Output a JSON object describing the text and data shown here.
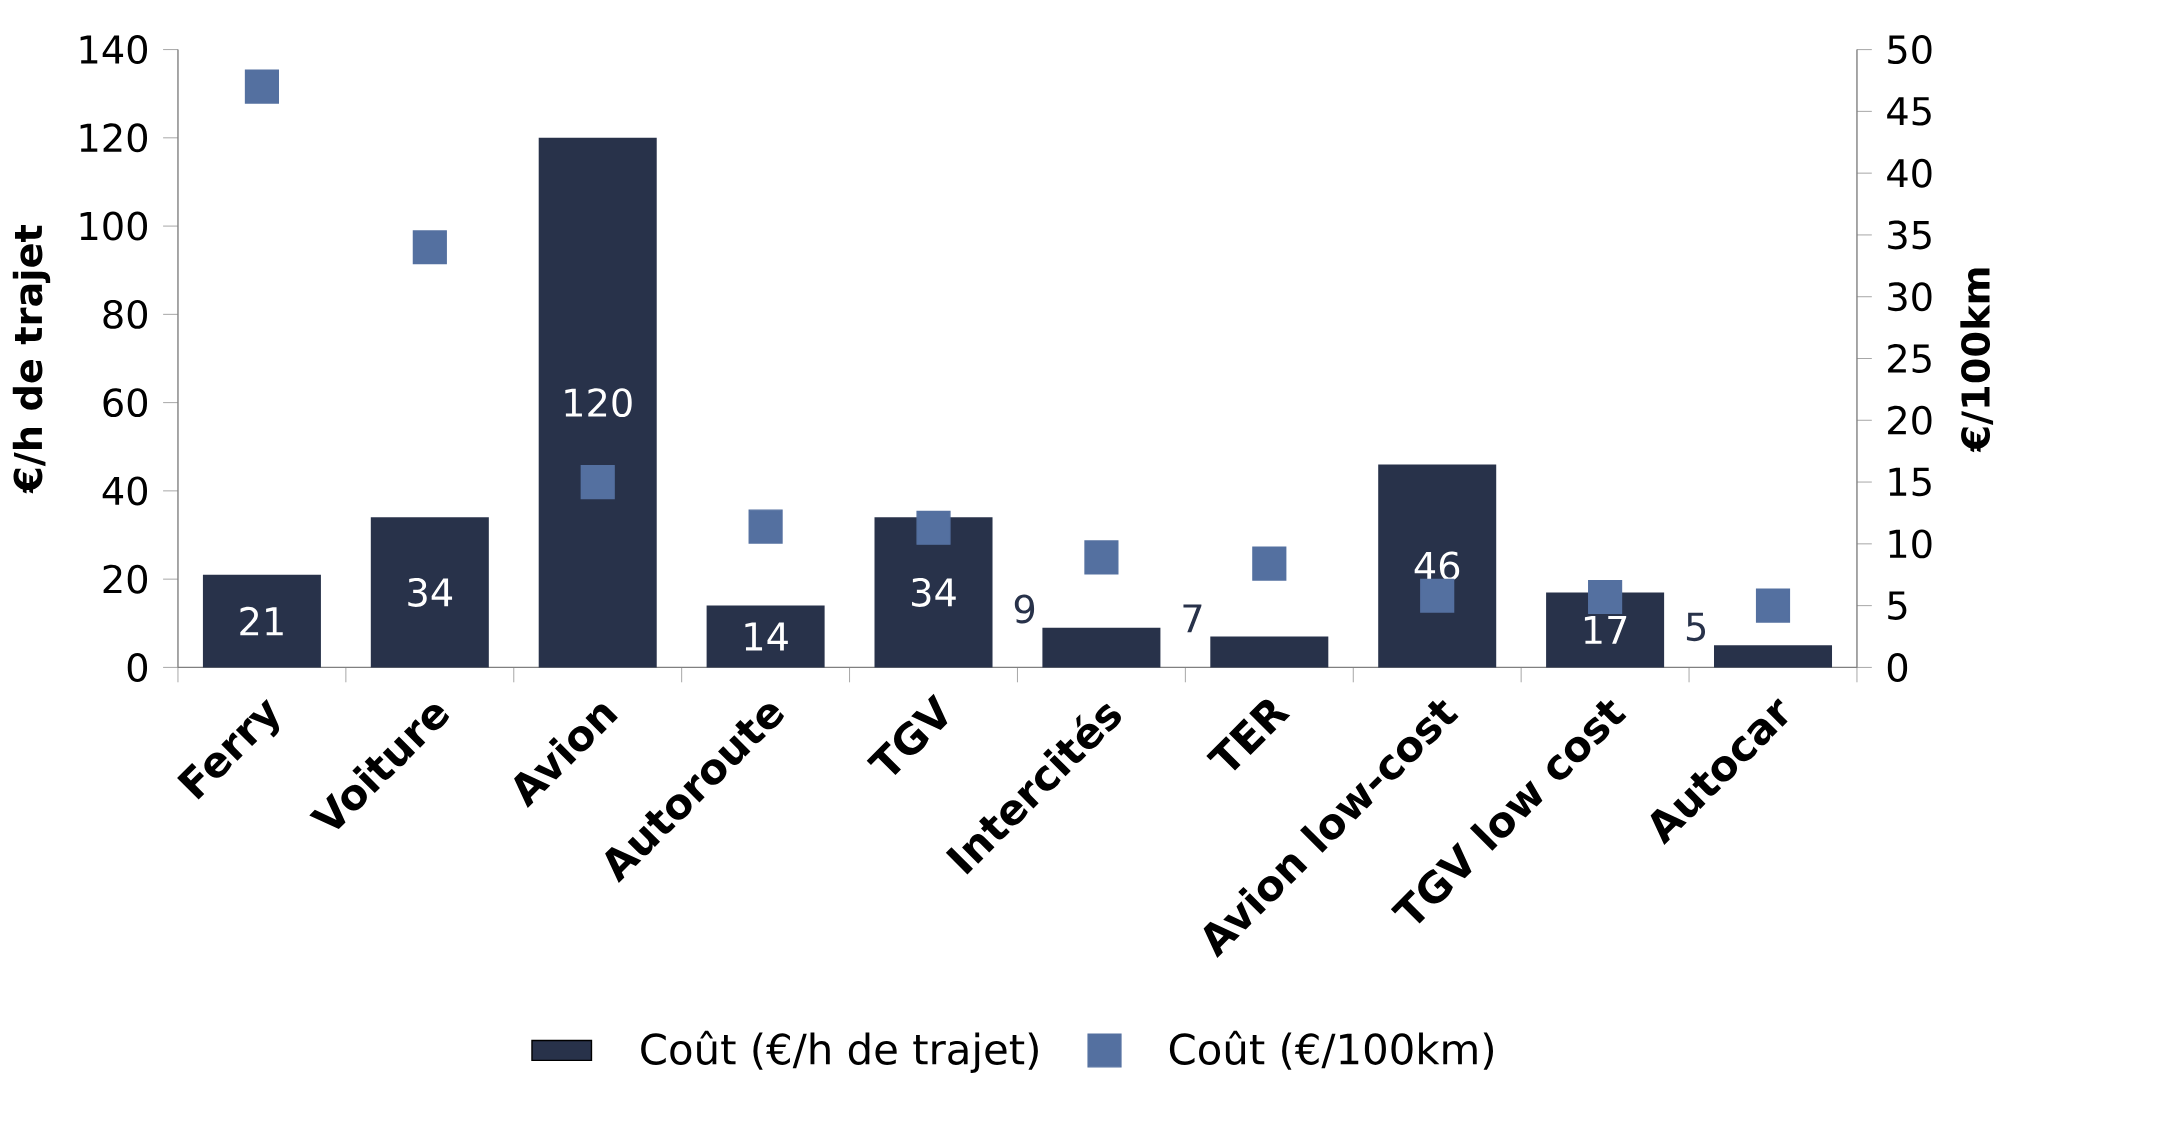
{
  "chart_data": {
    "type": "bar",
    "ylabel": "€/h de trajet",
    "y2label": "€/100km",
    "categories": [
      "Ferry",
      "Voiture",
      "Avion",
      "Autoroute",
      "TGV",
      "Intercités",
      "TER",
      "Avion low-cost",
      "TGV low cost",
      "Autocar"
    ],
    "series": [
      {
        "name": "Coût (€/h de trajet)",
        "type": "bar",
        "color": "#28324a",
        "values": [
          21,
          34,
          120,
          14,
          34,
          9,
          7,
          46,
          17,
          5
        ],
        "value_labels": [
          "21",
          "34",
          "120",
          "14",
          "34",
          "9",
          "7",
          "46",
          "17",
          "5"
        ]
      },
      {
        "name": "Coût (€/100km)",
        "type": "scatter",
        "axis": "y2",
        "color": "#5470a0",
        "marker": "square",
        "values": [
          47,
          34,
          15,
          11.4,
          11.3,
          8.9,
          8.4,
          5.8,
          5.7,
          5
        ]
      }
    ],
    "ylim": [
      0,
      140
    ],
    "yticks": [
      0,
      20,
      40,
      60,
      80,
      100,
      120,
      140
    ],
    "y2lim": [
      0,
      50
    ],
    "y2ticks": [
      0,
      5,
      10,
      15,
      20,
      25,
      30,
      35,
      40,
      45,
      50
    ],
    "legend": "bottom"
  }
}
